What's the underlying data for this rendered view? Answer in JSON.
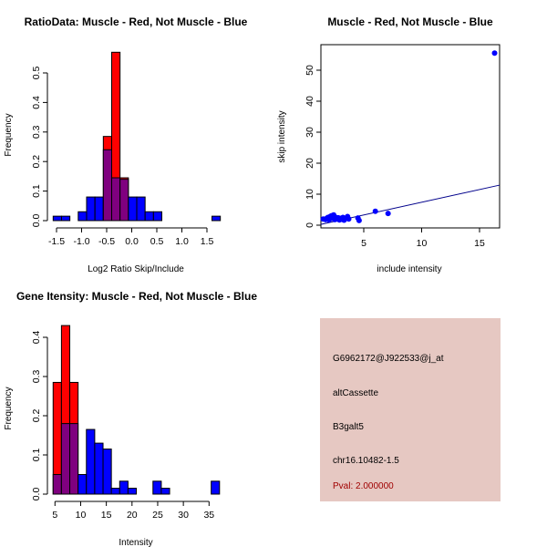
{
  "colors": {
    "red": "#ff0000",
    "blue": "#0000ff",
    "overlap": "#7f007f",
    "panel": "#e6c8c2",
    "pval": "#a00000",
    "line": "#00008b"
  },
  "chart_data": [
    {
      "type": "bar",
      "title": "RatioData: Muscle - Red, Not Muscle - Blue",
      "xlabel": "Log2 Ratio Skip/Include",
      "ylabel": "Frequency",
      "bin_start": -1.567,
      "bin_width": 0.1667,
      "xlim": [
        -1.6,
        1.85
      ],
      "ylim": [
        0,
        0.57
      ],
      "xticks": [
        -1.5,
        -1.0,
        -0.5,
        0.0,
        0.5,
        1.0,
        1.5
      ],
      "xtick_labels": [
        "-1.5",
        "-1.0",
        "-0.5",
        "0.0",
        "0.5",
        "1.0",
        "1.5"
      ],
      "yticks": [
        0,
        0.1,
        0.2,
        0.3,
        0.4,
        0.5
      ],
      "ytick_labels": [
        "0.0",
        "0.1",
        "0.2",
        "0.3",
        "0.4",
        "0.5"
      ],
      "series": [
        {
          "name": "Muscle",
          "color": "red",
          "values": [
            0,
            0,
            0,
            0,
            0,
            0,
            0.285,
            0.57,
            0.145,
            0,
            0,
            0,
            0,
            0,
            0,
            0,
            0,
            0,
            0,
            0
          ]
        },
        {
          "name": "Not Muscle",
          "color": "blue",
          "values": [
            0.015,
            0.015,
            0,
            0.03,
            0.08,
            0.08,
            0.24,
            0.145,
            0.14,
            0.08,
            0.08,
            0.03,
            0.03,
            0,
            0,
            0,
            0,
            0,
            0,
            0.015
          ]
        }
      ]
    },
    {
      "type": "scatter",
      "title": "Muscle - Red, Not Muscle - Blue",
      "xlabel": "include intensity",
      "ylabel": "skip intensity",
      "xlim": [
        1.3,
        16.8
      ],
      "ylim": [
        -1,
        58
      ],
      "xticks": [
        5,
        10,
        15
      ],
      "xtick_labels": [
        "5",
        "10",
        "15"
      ],
      "yticks": [
        0,
        10,
        20,
        30,
        40,
        50
      ],
      "ytick_labels": [
        "0",
        "10",
        "20",
        "30",
        "40",
        "50"
      ],
      "points": [
        [
          1.5,
          2.0
        ],
        [
          1.7,
          1.8
        ],
        [
          1.8,
          2.2
        ],
        [
          1.9,
          2.5
        ],
        [
          2.0,
          1.7
        ],
        [
          2.1,
          2.8
        ],
        [
          2.2,
          3.0
        ],
        [
          2.3,
          2.2
        ],
        [
          2.4,
          3.3
        ],
        [
          2.5,
          1.8
        ],
        [
          2.6,
          2.5
        ],
        [
          2.7,
          2.0
        ],
        [
          2.8,
          2.4
        ],
        [
          2.9,
          1.7
        ],
        [
          3.0,
          2.2
        ],
        [
          3.1,
          1.9
        ],
        [
          3.2,
          2.5
        ],
        [
          3.3,
          1.6
        ],
        [
          3.4,
          2.1
        ],
        [
          3.5,
          2.3
        ],
        [
          3.6,
          2.8
        ],
        [
          3.7,
          2.0
        ],
        [
          4.5,
          2.3
        ],
        [
          4.6,
          1.5
        ],
        [
          6.0,
          4.5
        ],
        [
          7.1,
          3.8
        ],
        [
          16.3,
          55.5
        ]
      ],
      "fit_line": {
        "intercept": -0.8,
        "slope": 0.82
      }
    },
    {
      "type": "bar",
      "title": "Gene Itensity: Muscle - Red, Not Muscle - Blue",
      "xlabel": "Intensity",
      "ylabel": "Frequency",
      "bin_start": 4.64,
      "bin_width": 1.62,
      "xlim": [
        4,
        38.5
      ],
      "ylim": [
        0,
        0.43
      ],
      "xticks": [
        5,
        10,
        15,
        20,
        25,
        30,
        35
      ],
      "xtick_labels": [
        "5",
        "10",
        "15",
        "20",
        "25",
        "30",
        "35"
      ],
      "yticks": [
        0,
        0.1,
        0.2,
        0.3,
        0.4
      ],
      "ytick_labels": [
        "0.0",
        "0.1",
        "0.2",
        "0.3",
        "0.4"
      ],
      "series": [
        {
          "name": "Muscle",
          "color": "red",
          "values": [
            0.285,
            0.43,
            0.285,
            0,
            0,
            0,
            0,
            0,
            0,
            0,
            0,
            0,
            0,
            0,
            0,
            0,
            0,
            0,
            0,
            0
          ]
        },
        {
          "name": "Not Muscle",
          "color": "blue",
          "values": [
            0.05,
            0.18,
            0.18,
            0.05,
            0.165,
            0.13,
            0.115,
            0.015,
            0.033,
            0.015,
            0,
            0,
            0.033,
            0.015,
            0,
            0,
            0,
            0,
            0,
            0.033
          ]
        }
      ]
    }
  ],
  "info_panel": {
    "probe": "G6962172@J922533@j_at",
    "event_type": "altCassette",
    "gene": "B3galt5",
    "location": "chr16.10482-1.5",
    "pval": "Pval: 2.000000"
  }
}
